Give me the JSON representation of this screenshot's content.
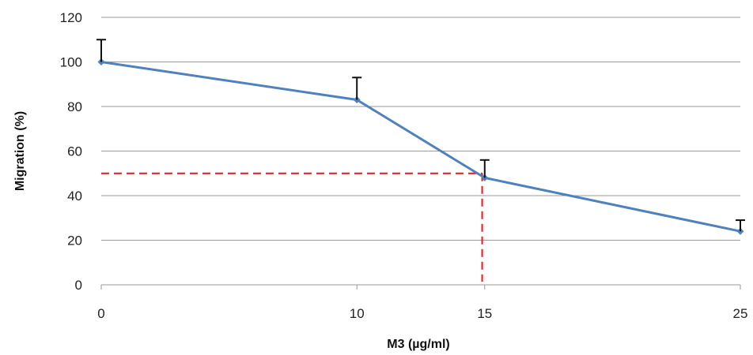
{
  "chart_data": {
    "type": "line",
    "xlabel": "M3 (µg/ml)",
    "ylabel": "Migration (%)",
    "categories": [
      "0",
      "10",
      "15",
      "25"
    ],
    "ylim": [
      0,
      120
    ],
    "yticks": [
      "0",
      "20",
      "40",
      "60",
      "80",
      "100",
      "120"
    ],
    "grid": true,
    "legend": "none",
    "series": [
      {
        "values": [
          100,
          83,
          48,
          24
        ],
        "error_upper": [
          10,
          10,
          8,
          5
        ],
        "color": "#4f81bd"
      }
    ],
    "reference_lines": {
      "y": 50,
      "x": 14.9,
      "color": "#e21b1b",
      "style": "dashed"
    }
  }
}
